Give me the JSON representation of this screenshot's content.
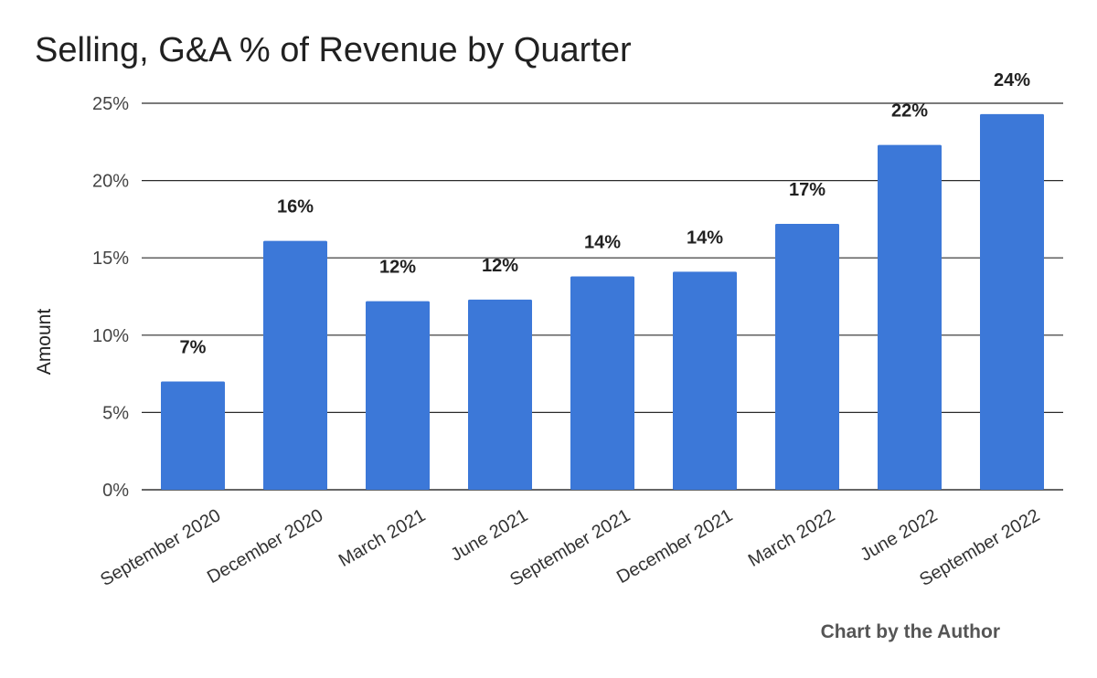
{
  "chart_data": {
    "type": "bar",
    "title": "Selling, G&A % of Revenue by Quarter",
    "xlabel": "",
    "ylabel": "Amount",
    "categories": [
      "September 2020",
      "December 2020",
      "March 2021",
      "June 2021",
      "September 2021",
      "December 2021",
      "March 2022",
      "June 2022",
      "September 2022"
    ],
    "values": [
      7.0,
      16.1,
      12.2,
      12.3,
      13.8,
      14.1,
      17.2,
      22.3,
      24.3
    ],
    "data_labels": [
      "7%",
      "16%",
      "12%",
      "12%",
      "14%",
      "14%",
      "17%",
      "22%",
      "24%"
    ],
    "ylim": [
      0,
      25
    ],
    "y_ticks": [
      0,
      5,
      10,
      15,
      20,
      25
    ],
    "y_tick_labels": [
      "0%",
      "5%",
      "10%",
      "15%",
      "20%",
      "25%"
    ],
    "grid": true,
    "bar_color": "#3c78d8"
  },
  "credit": "Chart by the Author"
}
